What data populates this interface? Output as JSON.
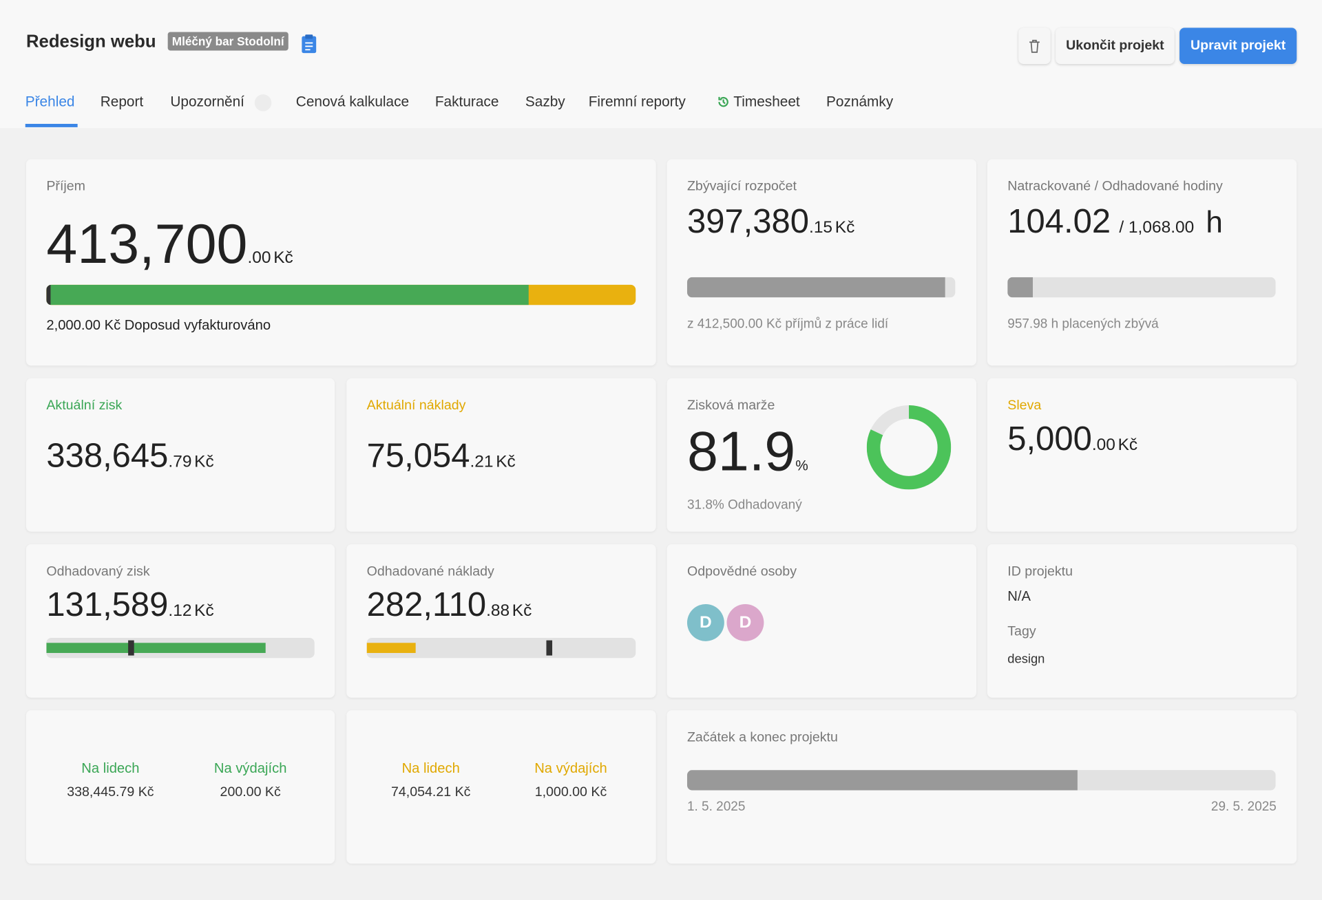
{
  "header": {
    "title": "Redesign webu",
    "client": "Mléčný bar Stodolní",
    "buttons": {
      "end": "Ukončit projekt",
      "edit": "Upravit projekt"
    }
  },
  "tabs": [
    "Přehled",
    "Report",
    "Upozornění",
    "Cenová kalkulace",
    "Fakturace",
    "Sazby",
    "Firemní reporty",
    "Timesheet",
    "Poznámky"
  ],
  "cards": {
    "income": {
      "label": "Příjem",
      "main": "413,700",
      "decimals": ".00",
      "unit": "Kč",
      "note": "2,000.00 Kč Doposud vyfakturováno"
    },
    "remaining_budget": {
      "label": "Zbývající rozpočet",
      "main": "397,380",
      "decimals": ".15",
      "unit": "Kč",
      "note": "z 412,500.00 Kč příjmů z práce lidí"
    },
    "hours": {
      "label": "Natrackované / Odhadované hodiny",
      "tracked": "104.02",
      "estimated": "/ 1,068.00",
      "unit": "h",
      "note": "957.98 h placených zbývá"
    },
    "current_profit": {
      "label": "Aktuální zisk",
      "main": "338,645",
      "decimals": ".79",
      "unit": "Kč"
    },
    "current_costs": {
      "label": "Aktuální náklady",
      "main": "75,054",
      "decimals": ".21",
      "unit": "Kč"
    },
    "margin": {
      "label": "Zisková marže",
      "main": "81.9",
      "unit": "%",
      "note": "31.8% Odhadovaný"
    },
    "discount": {
      "label": "Sleva",
      "main": "5,000",
      "decimals": ".00",
      "unit": "Kč"
    },
    "estimated_profit": {
      "label": "Odhadovaný zisk",
      "main": "131,589",
      "decimals": ".12",
      "unit": "Kč"
    },
    "estimated_costs": {
      "label": "Odhadované náklady",
      "main": "282,110",
      "decimals": ".88",
      "unit": "Kč"
    },
    "responsible": {
      "label": "Odpovědné osoby",
      "people": [
        "D",
        "D"
      ]
    },
    "project": {
      "id_label": "ID projektu",
      "id": "N/A",
      "tags_label": "Tagy",
      "tags": [
        "design"
      ]
    },
    "profit_split": {
      "people_label": "Na lidech",
      "people": "338,445.79 Kč",
      "expenses_label": "Na výdajích",
      "expenses": "200.00 Kč"
    },
    "cost_split": {
      "people_label": "Na lidech",
      "people": "74,054.21 Kč",
      "expenses_label": "Na výdajích",
      "expenses": "1,000.00 Kč"
    },
    "timeline": {
      "label": "Začátek a konec projektu",
      "start": "1. 5. 2025",
      "end": "29. 5. 2025"
    }
  }
}
